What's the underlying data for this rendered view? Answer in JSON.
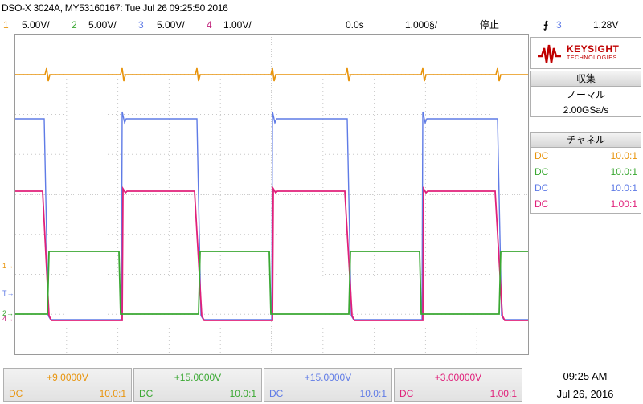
{
  "title": "DSO-X 3024A, MY53160167: Tue Jul 26 09:25:50 2016",
  "channels": [
    {
      "num": "1",
      "scale": "5.00V/",
      "color": "#e8940c",
      "coupling": "DC",
      "probe": "10.0:1",
      "offset": "+9.0000V"
    },
    {
      "num": "2",
      "scale": "5.00V/",
      "color": "#3aa832",
      "coupling": "DC",
      "probe": "10.0:1",
      "offset": "+15.0000V"
    },
    {
      "num": "3",
      "scale": "5.00V/",
      "color": "#5f7be6",
      "coupling": "DC",
      "probe": "10.0:1",
      "offset": "+15.0000V"
    },
    {
      "num": "4",
      "scale": "1.00V/",
      "color": "#e0207a",
      "coupling": "DC",
      "probe": "1.00:1",
      "offset": "+3.00000V"
    }
  ],
  "timebase": {
    "delay": "0.0s",
    "scale": "1.000§/"
  },
  "run_state": "停止",
  "trigger": {
    "icon": "trigger-edge-icon",
    "source": "3",
    "level": "1.28V"
  },
  "brand": {
    "name": "KEYSIGHT",
    "sub": "TECHNOLOGIES"
  },
  "acquisition": {
    "header": "収集",
    "mode": "ノーマル",
    "rate": "2.00GSa/s"
  },
  "channel_panel": {
    "header": "チャネル"
  },
  "clock": {
    "time": "09:25 AM",
    "date": "Jul 26, 2016"
  },
  "markers": {
    "ch1": "1",
    "ch2": "2",
    "ch4": "4",
    "trig": "T"
  }
}
